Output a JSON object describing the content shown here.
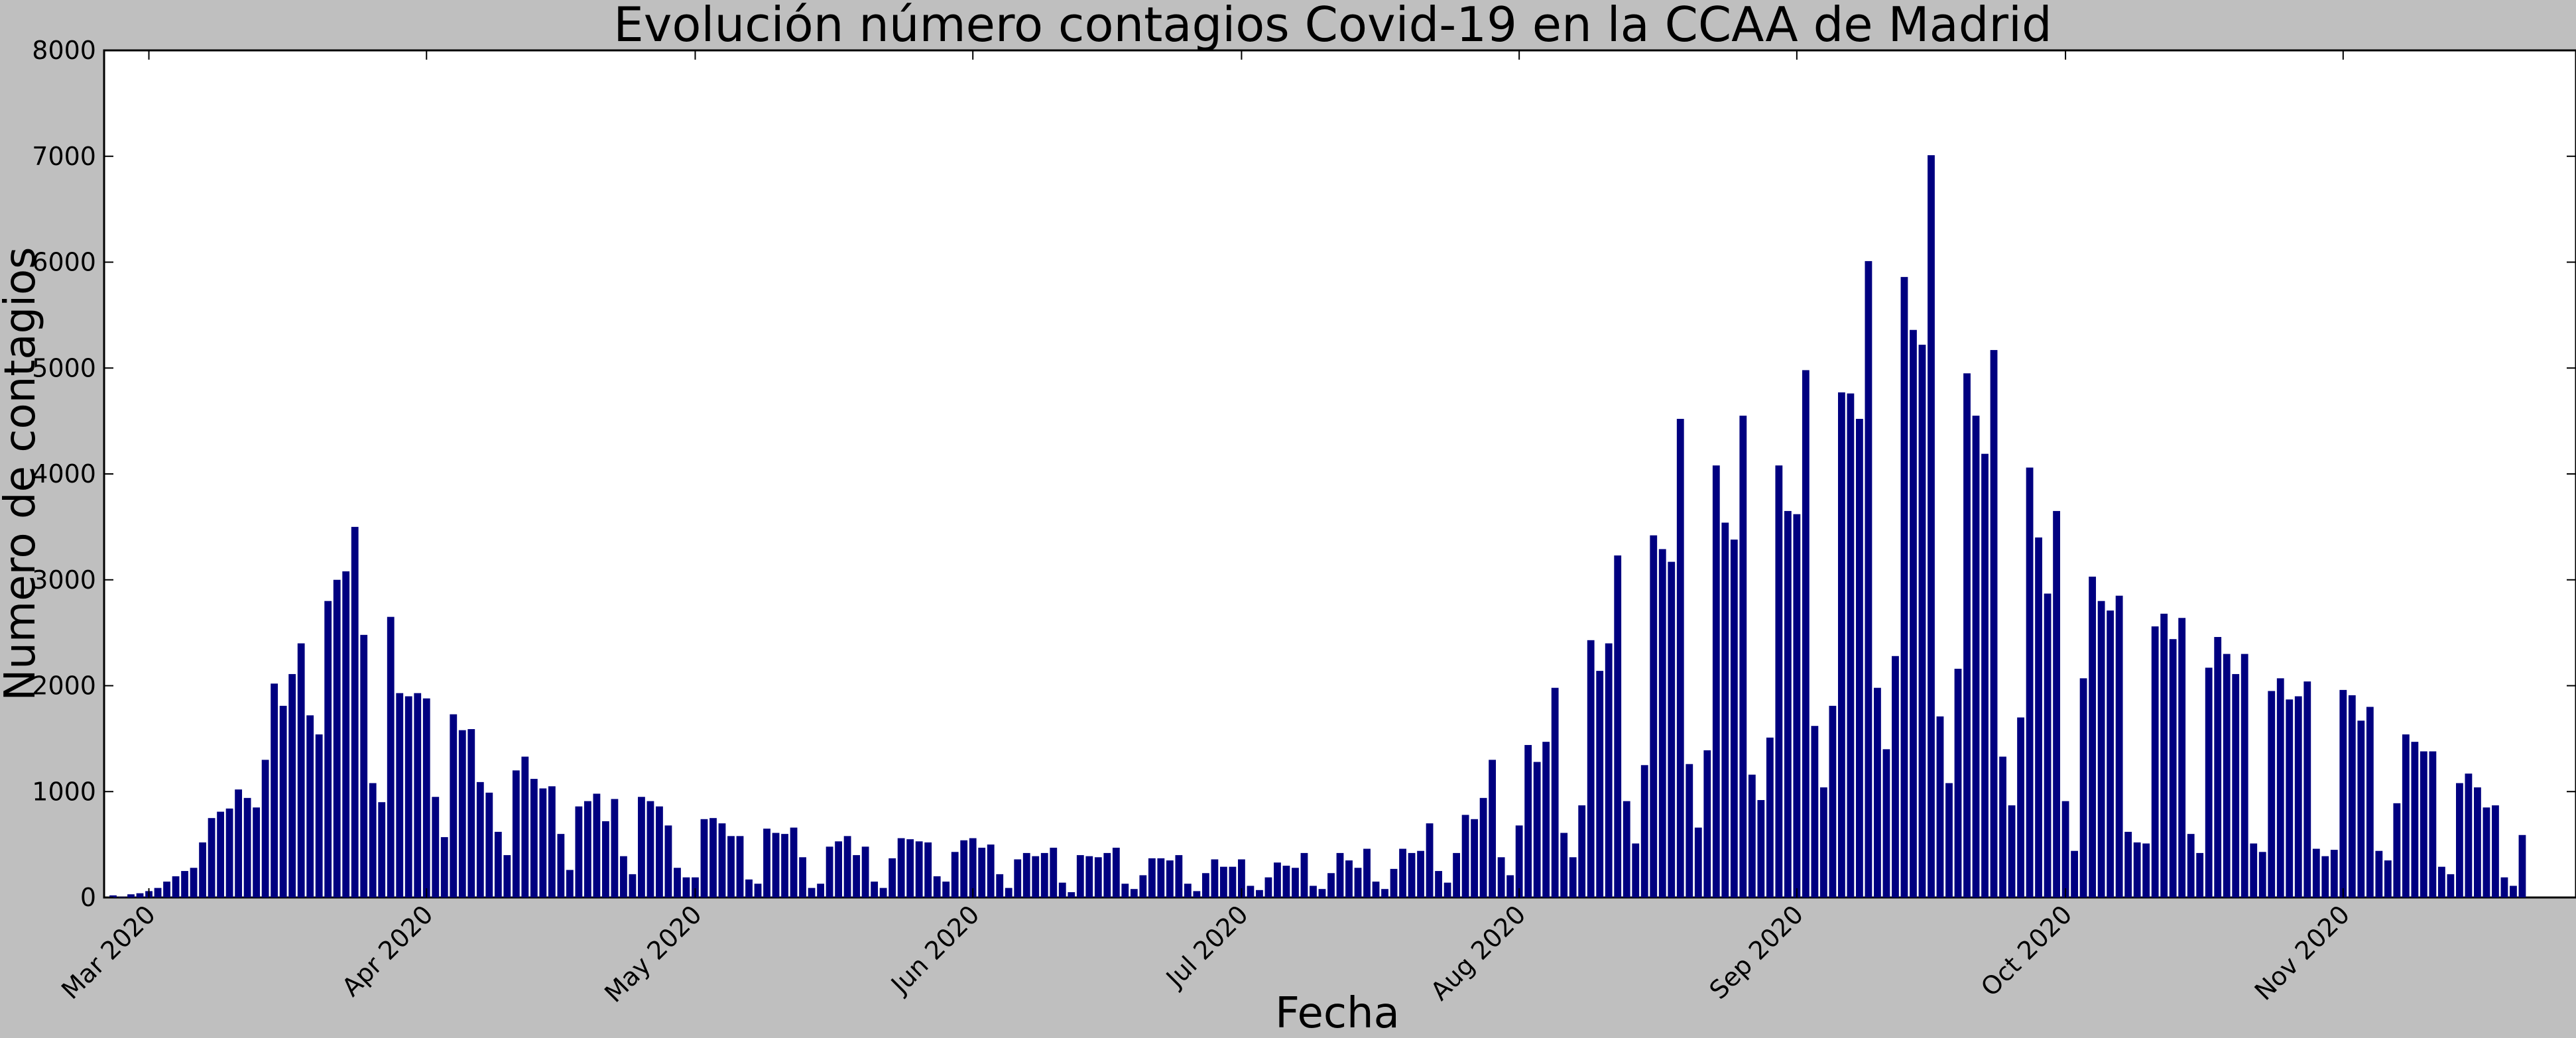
{
  "chart_data": {
    "type": "bar",
    "title": "Evolución número contagios Covid-19 en la CCAA de Madrid",
    "xlabel": "Fecha",
    "ylabel": "Numero de contagios",
    "ylim": [
      0,
      8000
    ],
    "yticks": [
      0,
      1000,
      2000,
      3000,
      4000,
      5000,
      6000,
      7000,
      8000
    ],
    "xticks": [
      {
        "label": "Mar 2020",
        "date": "2020-03-01"
      },
      {
        "label": "Apr 2020",
        "date": "2020-04-01"
      },
      {
        "label": "May 2020",
        "date": "2020-05-01"
      },
      {
        "label": "Jun 2020",
        "date": "2020-06-01"
      },
      {
        "label": "Jul 2020",
        "date": "2020-07-01"
      },
      {
        "label": "Aug 2020",
        "date": "2020-08-01"
      },
      {
        "label": "Sep 2020",
        "date": "2020-09-01"
      },
      {
        "label": "Oct 2020",
        "date": "2020-10-01"
      },
      {
        "label": "Nov 2020",
        "date": "2020-11-01"
      }
    ],
    "xlim": [
      "2020-02-25",
      "2020-11-27"
    ],
    "grid": false,
    "bar_color": "#000080",
    "background_color": "#bfbfbf",
    "plot_background": "#ffffff",
    "values": [
      20,
      5,
      30,
      40,
      60,
      90,
      150,
      200,
      250,
      280,
      520,
      750,
      810,
      840,
      1020,
      940,
      850,
      1300,
      2020,
      1810,
      2110,
      2400,
      1720,
      1540,
      2800,
      3000,
      3080,
      3500,
      2480,
      1080,
      900,
      2650,
      1930,
      1900,
      1930,
      1880,
      950,
      570,
      1730,
      1580,
      1590,
      1090,
      990,
      620,
      400,
      1200,
      1330,
      1120,
      1030,
      1050,
      600,
      260,
      860,
      910,
      980,
      720,
      930,
      390,
      220,
      950,
      910,
      860,
      680,
      280,
      190,
      190,
      740,
      750,
      700,
      580,
      580,
      170,
      130,
      650,
      610,
      600,
      660,
      380,
      90,
      130,
      480,
      530,
      580,
      400,
      480,
      150,
      90,
      370,
      560,
      550,
      530,
      520,
      200,
      150,
      430,
      540,
      560,
      470,
      500,
      220,
      90,
      360,
      420,
      390,
      420,
      470,
      140,
      50,
      400,
      390,
      380,
      420,
      470,
      130,
      80,
      210,
      370,
      370,
      350,
      400,
      130,
      60,
      230,
      360,
      290,
      290,
      360,
      110,
      70,
      190,
      330,
      300,
      280,
      420,
      110,
      80,
      230,
      420,
      350,
      280,
      460,
      150,
      80,
      270,
      460,
      420,
      440,
      700,
      250,
      140,
      420,
      780,
      740,
      940,
      1300,
      380,
      210,
      680,
      1440,
      1280,
      1470,
      1980,
      610,
      380,
      870,
      2430,
      2140,
      2400,
      3230,
      910,
      510,
      1250,
      3420,
      3290,
      3170,
      4520,
      1260,
      660,
      1390,
      4080,
      3540,
      3380,
      4550,
      1160,
      920,
      1510,
      4080,
      3650,
      3620,
      4980,
      1620,
      1040,
      1810,
      4770,
      4760,
      4520,
      6010,
      1980,
      1400,
      2280,
      5860,
      5360,
      5220,
      7010,
      1710,
      1080,
      2160,
      4950,
      4550,
      4190,
      5170,
      1330,
      870,
      1700,
      4060,
      3400,
      2870,
      3650,
      910,
      440,
      2070,
      3030,
      2800,
      2710,
      2850,
      620,
      520,
      510,
      2560,
      2680,
      2440,
      2640,
      600,
      420,
      2170,
      2460,
      2300,
      2110,
      2300,
      510,
      430,
      1950,
      2070,
      1870,
      1900,
      2040,
      460,
      390,
      450,
      1960,
      1910,
      1670,
      1800,
      440,
      350,
      890,
      1540,
      1470,
      1380,
      1380,
      290,
      220,
      1080,
      1170,
      1040,
      850,
      870,
      190,
      110,
      590
    ]
  }
}
